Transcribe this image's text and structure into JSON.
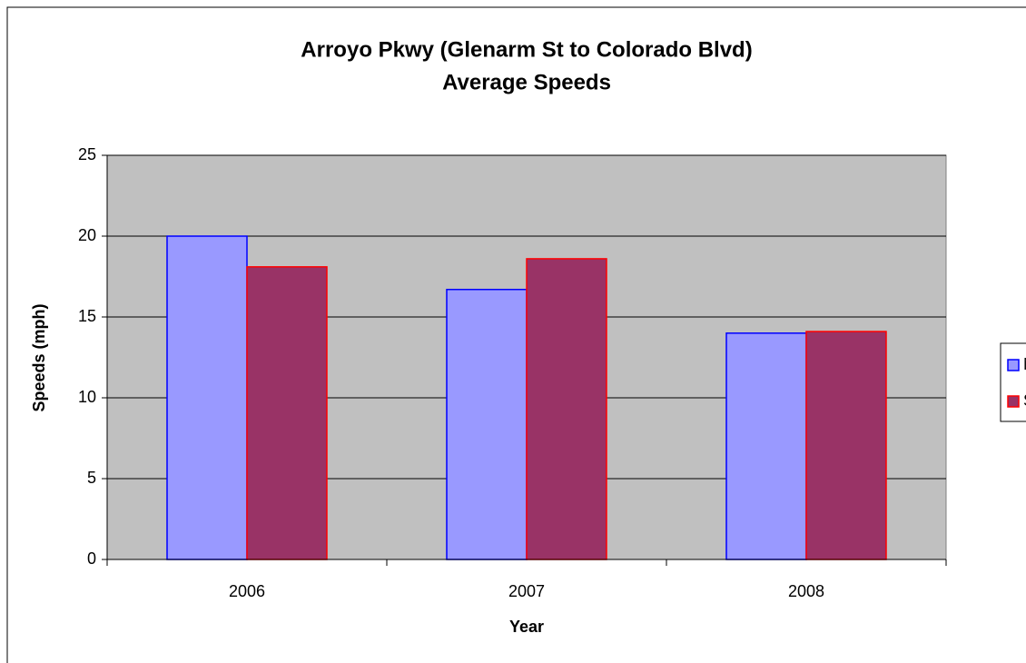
{
  "chart_data": {
    "type": "bar",
    "title": "Arroyo Pkwy (Glenarm St to Colorado Blvd)",
    "subtitle": "Average Speeds",
    "x_label": "Year",
    "y_label": "Speeds (mph)",
    "categories": [
      "2006",
      "2007",
      "2008"
    ],
    "series": [
      {
        "name": "NB",
        "color": "#9999ff",
        "edge": "#0000ff",
        "values": [
          20,
          16.7,
          14.0
        ]
      },
      {
        "name": "SB",
        "color": "#993366",
        "edge": "#ff0000",
        "values": [
          18.1,
          18.6,
          14.1
        ]
      }
    ],
    "ylim": [
      0,
      25
    ],
    "yticks": [
      0,
      5,
      10,
      15,
      20,
      25
    ],
    "grid": true,
    "legend": "right"
  }
}
